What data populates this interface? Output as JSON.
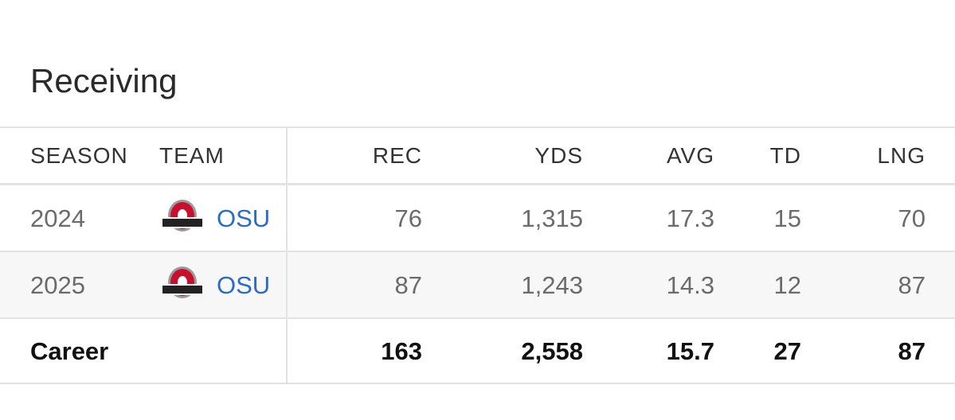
{
  "title": "Receiving",
  "table": {
    "columns": [
      "SEASON",
      "TEAM",
      "REC",
      "YDS",
      "AVG",
      "TD",
      "LNG"
    ],
    "rows": [
      [
        "2024",
        "OSU",
        "76",
        "1,315",
        "17.3",
        "15",
        "70"
      ],
      [
        "2025",
        "OSU",
        "87",
        "1,243",
        "14.3",
        "12",
        "87"
      ]
    ],
    "career": {
      "label": "Career",
      "values": [
        "163",
        "2,558",
        "15.7",
        "27",
        "87"
      ]
    }
  }
}
